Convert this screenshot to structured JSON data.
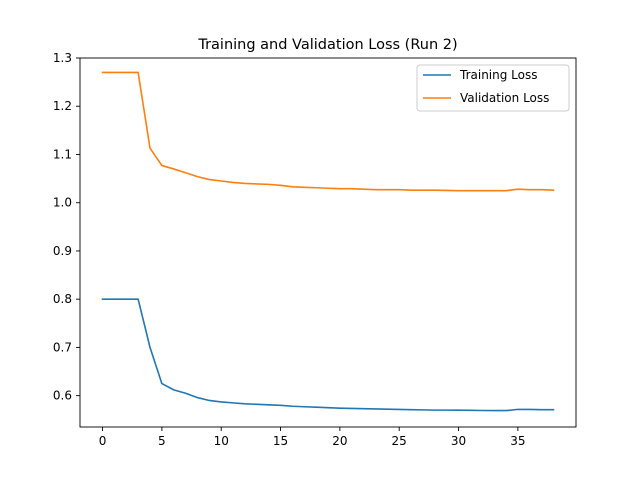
{
  "chart_data": {
    "type": "line",
    "title": "Training and Validation Loss (Run 2)",
    "xlabel": "",
    "ylabel": "",
    "xlim": [
      -1.9,
      39.9
    ],
    "ylim": [
      0.535,
      1.3
    ],
    "xticks": [
      0,
      5,
      10,
      15,
      20,
      25,
      30,
      35
    ],
    "yticks": [
      0.6,
      0.7,
      0.8,
      0.9,
      1.0,
      1.1,
      1.2,
      1.3
    ],
    "ytick_labels": [
      "0.6",
      "0.7",
      "0.8",
      "0.9",
      "1.0",
      "1.1",
      "1.2",
      "1.3"
    ],
    "grid": false,
    "legend_position": "top-right",
    "x": [
      0,
      1,
      2,
      3,
      4,
      5,
      6,
      7,
      8,
      9,
      10,
      11,
      12,
      13,
      14,
      15,
      16,
      17,
      18,
      19,
      20,
      21,
      22,
      23,
      24,
      25,
      26,
      27,
      28,
      29,
      30,
      31,
      32,
      33,
      34,
      35,
      36,
      37,
      38
    ],
    "series": [
      {
        "name": "Training Loss",
        "color": "#1f77b4",
        "values": [
          0.8,
          0.8,
          0.8,
          0.8,
          0.7,
          0.625,
          0.612,
          0.605,
          0.596,
          0.59,
          0.587,
          0.585,
          0.583,
          0.582,
          0.581,
          0.58,
          0.578,
          0.577,
          0.576,
          0.575,
          0.574,
          0.5735,
          0.573,
          0.5725,
          0.572,
          0.5715,
          0.571,
          0.5705,
          0.57,
          0.57,
          0.5698,
          0.5695,
          0.5692,
          0.569,
          0.569,
          0.5715,
          0.5715,
          0.571,
          0.571
        ]
      },
      {
        "name": "Validation Loss",
        "color": "#ff7f0e",
        "values": [
          1.27,
          1.27,
          1.27,
          1.27,
          1.113,
          1.077,
          1.07,
          1.062,
          1.054,
          1.048,
          1.045,
          1.042,
          1.04,
          1.039,
          1.038,
          1.036,
          1.033,
          1.032,
          1.031,
          1.03,
          1.029,
          1.029,
          1.028,
          1.027,
          1.027,
          1.027,
          1.026,
          1.026,
          1.026,
          1.0255,
          1.025,
          1.025,
          1.025,
          1.025,
          1.025,
          1.028,
          1.027,
          1.027,
          1.026
        ]
      }
    ]
  }
}
